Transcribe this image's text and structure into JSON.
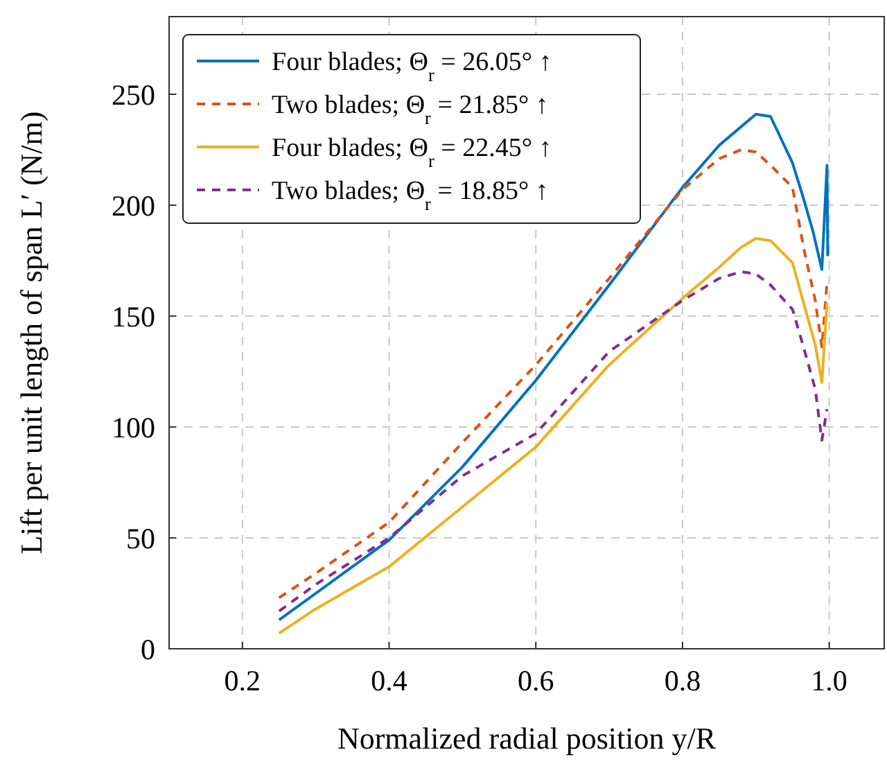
{
  "chart_data": {
    "type": "line",
    "xlabel": "Normalized radial position y/R",
    "ylabel": "Lift per unit length of span L′ (N/m)",
    "xlim": [
      0.1,
      1.075
    ],
    "ylim": [
      0,
      285
    ],
    "xticks": [
      {
        "value": 0.2,
        "label": "0.2"
      },
      {
        "value": 0.4,
        "label": "0.4"
      },
      {
        "value": 0.6,
        "label": "0.6"
      },
      {
        "value": 0.8,
        "label": "0.8"
      },
      {
        "value": 1.0,
        "label": "1.0"
      }
    ],
    "yticks": [
      0,
      50,
      100,
      150,
      200,
      250
    ],
    "grid": true,
    "legend": "top left",
    "x": [
      0.25,
      0.3,
      0.4,
      0.5,
      0.6,
      0.7,
      0.8,
      0.85,
      0.88,
      0.9,
      0.92,
      0.95,
      0.965,
      0.981,
      0.99,
      0.997
    ],
    "series": [
      {
        "name": "Four blades; Θ$_{r}$ = 26.05° ↑",
        "color": "#0072bd",
        "line_style": "solid",
        "x": [
          0.25,
          0.3,
          0.4,
          0.5,
          0.6,
          0.7,
          0.8,
          0.85,
          0.9,
          0.92,
          0.95,
          0.965,
          0.978,
          0.99,
          0.997,
          0.998
        ],
        "values": [
          13,
          25,
          49,
          82,
          121,
          164,
          208,
          227,
          241,
          240,
          219,
          203,
          188,
          171,
          218,
          177
        ]
      },
      {
        "name": "Two blades; Θ$_{r}$ = 21.85° ↑",
        "color": "#d95319",
        "line_style": "dashed",
        "values": [
          23,
          34,
          57,
          93,
          128,
          167,
          207,
          221,
          225,
          224,
          218,
          208,
          181,
          157,
          136,
          165
        ]
      },
      {
        "name": "Four blades; Θ$_{r}$ = 22.45° ↑",
        "color": "#edb120",
        "line_style": "solid",
        "values": [
          7,
          18,
          37,
          64,
          91,
          128,
          158,
          172,
          181,
          185,
          184,
          174,
          156,
          137,
          120,
          156
        ]
      },
      {
        "name": "Two blades; Θ$_{r}$ = 18.85° ↑",
        "color": "#7e2f8e",
        "line_style": "dashed",
        "values": [
          17,
          29,
          50,
          78,
          97,
          134,
          157,
          167,
          170,
          169,
          164,
          153,
          136,
          117,
          94,
          108
        ]
      }
    ]
  }
}
